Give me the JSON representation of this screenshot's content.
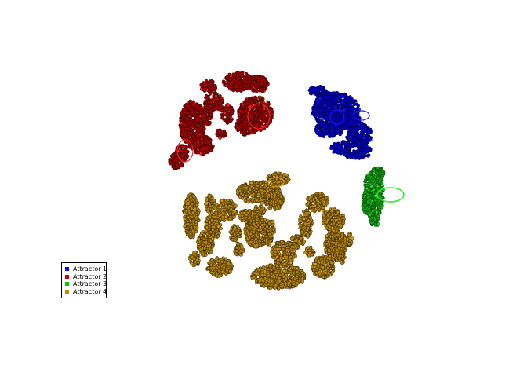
{
  "chart_data": {
    "type": "scatter",
    "title": "",
    "xlabel": "",
    "ylabel": "",
    "axes_visible": false,
    "grid": false,
    "legend_position": "lower-left",
    "series": [
      {
        "name": "Attractor 1",
        "color": "#0000cc",
        "edge_color": "#000033",
        "region": "upper-right",
        "shape": "ring"
      },
      {
        "name": "Attractor 2",
        "color": "#aa0000",
        "edge_color": "#220000",
        "region": "upper-left",
        "shape": "ring"
      },
      {
        "name": "Attractor 3",
        "color": "#11aa11",
        "edge_color": "#003300",
        "region": "right",
        "shape": "ring"
      },
      {
        "name": "Attractor 4",
        "color": "#b8860b",
        "edge_color": "#2a1e00",
        "region": "bottom-center",
        "shape": "ring"
      }
    ]
  },
  "legend": {
    "items": [
      {
        "label": "Attractor 1",
        "color": "#0000ff"
      },
      {
        "label": "Attractor 2",
        "color": "#cc0000"
      },
      {
        "label": "Attractor 3",
        "color": "#00cc00"
      },
      {
        "label": "Attractor 4",
        "color": "#cc8800"
      }
    ]
  }
}
